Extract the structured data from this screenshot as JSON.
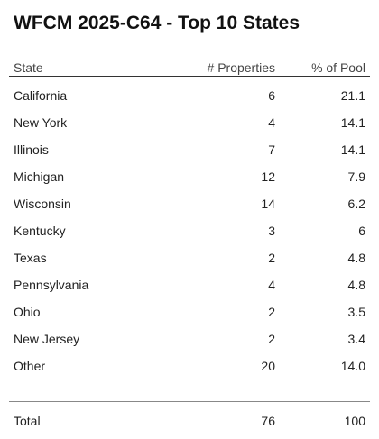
{
  "title": "WFCM 2025-C64 - Top 10 States",
  "table": {
    "header": [
      "State",
      "# Properties",
      "% of Pool"
    ],
    "rows": [
      [
        "California",
        "6",
        "21.1"
      ],
      [
        "New York",
        "4",
        "14.1"
      ],
      [
        "Illinois",
        "7",
        "14.1"
      ],
      [
        "Michigan",
        "12",
        "7.9"
      ],
      [
        "Wisconsin",
        "14",
        "6.2"
      ],
      [
        "Kentucky",
        "3",
        "6"
      ],
      [
        "Texas",
        "2",
        "4.8"
      ],
      [
        "Pennsylvania",
        "4",
        "4.8"
      ],
      [
        "Ohio",
        "2",
        "3.5"
      ],
      [
        "New Jersey",
        "2",
        "3.4"
      ],
      [
        "Other",
        "20",
        "14.0"
      ]
    ],
    "footer": [
      "Total",
      "76",
      "100"
    ]
  }
}
